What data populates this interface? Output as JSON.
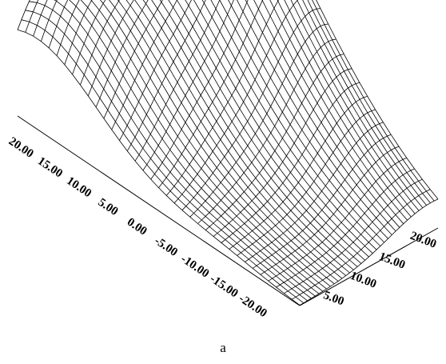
{
  "chart_data": {
    "type": "surface",
    "title": "",
    "caption": "a",
    "axes": {
      "left": {
        "tick_labels": [
          "20.00",
          "15.00",
          "10.00",
          "5.00",
          "0.00",
          "-5.00",
          "-10.00",
          "-15.00",
          "-20.00"
        ],
        "range": [
          -20,
          20
        ]
      },
      "right": {
        "tick_labels": [
          "20.00",
          "15.00",
          "10.00",
          "5.00"
        ],
        "range": [
          0,
          20
        ]
      }
    },
    "grid": {
      "rows": 36,
      "cols": 36
    },
    "surface_description": {
      "features": [
        "broad ridge peaking near the far back corner",
        "smooth downward slope toward the near front corner",
        "gentle undulations along the left rim"
      ]
    },
    "line_color": "#000000",
    "background": "#ffffff"
  }
}
